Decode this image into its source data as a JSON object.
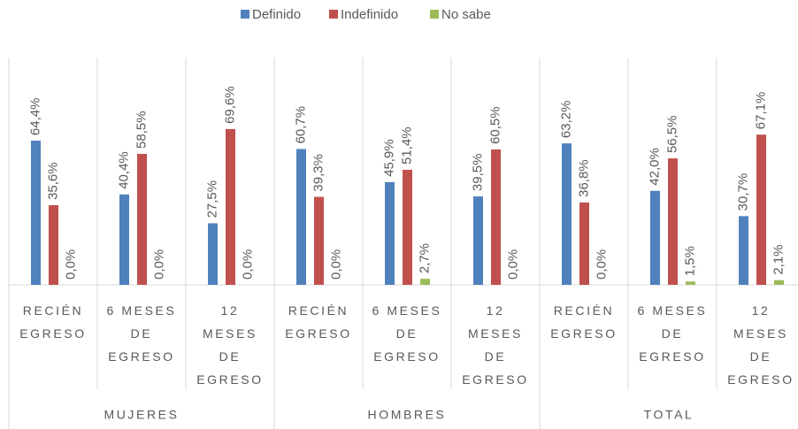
{
  "chart_data": {
    "type": "bar",
    "groups": [
      "MUJERES",
      "HOMBRES",
      "TOTAL"
    ],
    "categories": [
      "RECIÉN EGRESO",
      "6 MESES DE EGRESO",
      "12 MESES DE EGRESO",
      "RECIÉN EGRESO",
      "6 MESES DE EGRESO",
      "12 MESES DE EGRESO",
      "RECIÉN EGRESO",
      "6 MESES DE EGRESO",
      "12 MESES DE EGRESO"
    ],
    "series": [
      {
        "name": "Definido",
        "color": "#4f81bd",
        "values": [
          64.4,
          40.4,
          27.5,
          60.7,
          45.9,
          39.5,
          63.2,
          42.0,
          30.7
        ],
        "value_labels": [
          "64,4%",
          "40,4%",
          "27,5%",
          "60,7%",
          "45,9%",
          "39,5%",
          "63,2%",
          "42,0%",
          "30,7%"
        ]
      },
      {
        "name": "Indefinido",
        "color": "#c0504d",
        "values": [
          35.6,
          58.5,
          69.6,
          39.3,
          51.4,
          60.5,
          36.8,
          56.5,
          67.1
        ],
        "value_labels": [
          "35,6%",
          "58,5%",
          "69,6%",
          "39,3%",
          "51,4%",
          "60,5%",
          "36,8%",
          "56,5%",
          "67,1%"
        ]
      },
      {
        "name": "No sabe",
        "color": "#9bbb59",
        "values": [
          0,
          0,
          0,
          0,
          2.7,
          0,
          0,
          1.5,
          2.1
        ],
        "value_labels": [
          "0,0%",
          "0,0%",
          "0,0%",
          "0,0%",
          "2,7%",
          "0,0%",
          "0,0%",
          "1,5%",
          "2,1%"
        ]
      }
    ],
    "ylim": [
      0,
      100
    ],
    "legend": "top"
  }
}
